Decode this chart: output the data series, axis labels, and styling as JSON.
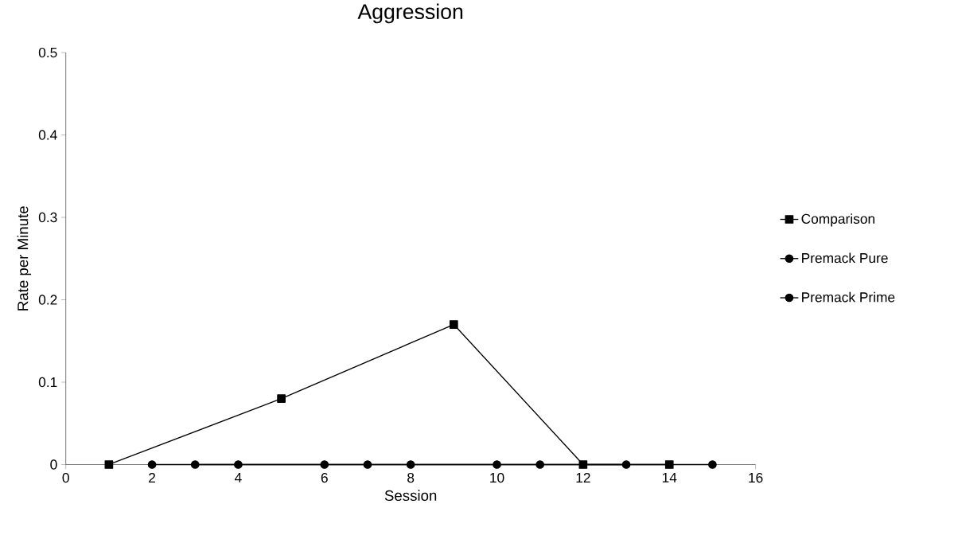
{
  "chart_data": {
    "type": "line",
    "title": "Aggression",
    "xlabel": "Session",
    "ylabel": "Rate per Minute",
    "xlim": [
      0,
      16
    ],
    "xticks": [
      0,
      2,
      4,
      6,
      8,
      10,
      12,
      14,
      16
    ],
    "ylim": [
      0,
      0.5
    ],
    "yticks": [
      0,
      0.1,
      0.2,
      0.3,
      0.4,
      0.5
    ],
    "grid": false,
    "legend": "right",
    "line_style": "solid",
    "series": [
      {
        "name": "Comparison",
        "color": "#000000",
        "marker": "square",
        "x": [
          1,
          5,
          9,
          12,
          14
        ],
        "values": [
          0,
          0.08,
          0.17,
          0,
          0
        ]
      },
      {
        "name": "Premack Pure",
        "color": "#000000",
        "marker": "circle",
        "x": [
          3,
          6,
          7,
          11,
          15
        ],
        "values": [
          0,
          0,
          0,
          0,
          0
        ]
      },
      {
        "name": "Premack Prime",
        "color": "#000000",
        "marker": "circle",
        "x": [
          2,
          4,
          8,
          10,
          13
        ],
        "values": [
          0,
          0,
          0,
          0,
          0
        ]
      }
    ]
  }
}
